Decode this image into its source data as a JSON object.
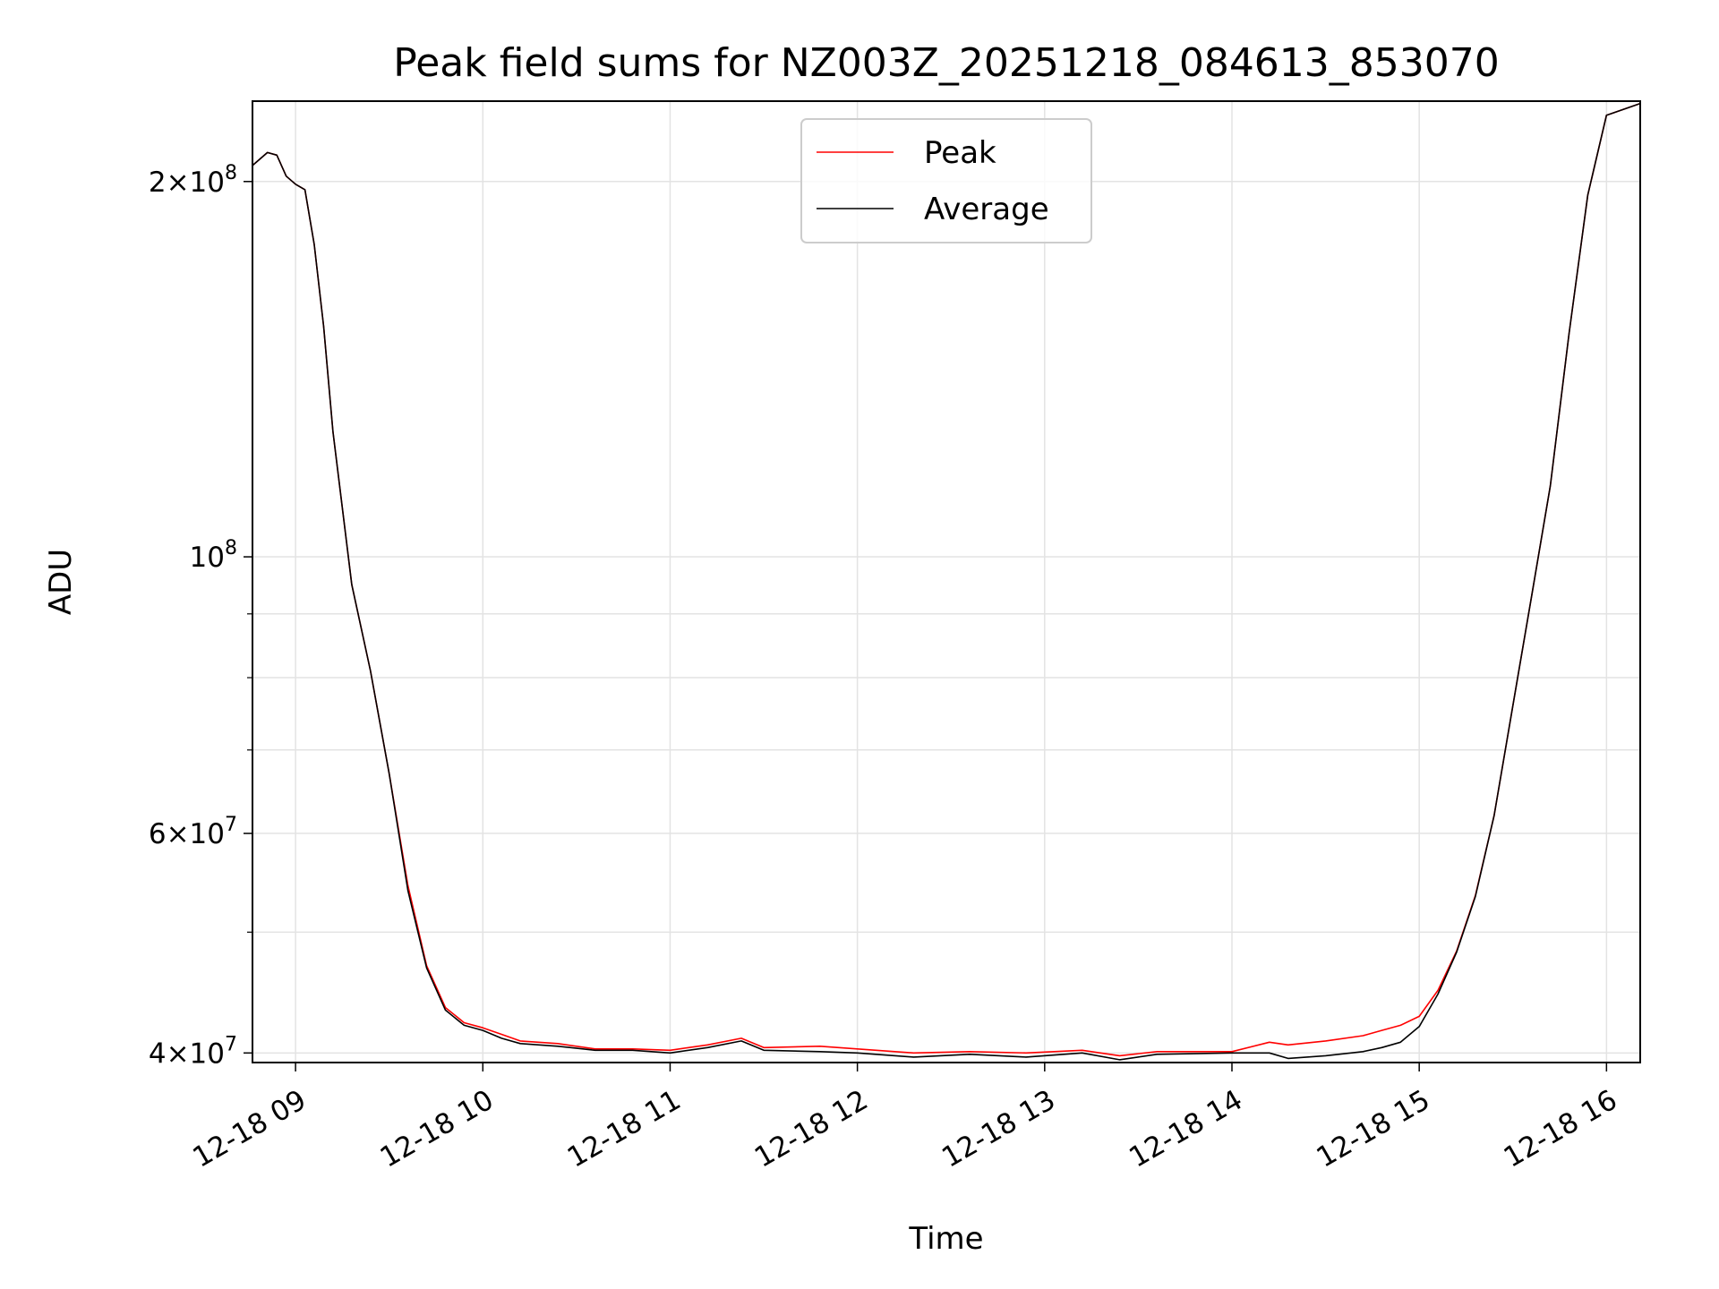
{
  "chart_data": {
    "type": "line",
    "title": "Peak field sums for NZ003Z_20251218_084613_853070",
    "xlabel": "Time",
    "ylabel": "ADU",
    "yscale": "log",
    "xlim": [
      8.77,
      16.18
    ],
    "ylim": [
      39300000,
      232000000
    ],
    "grid": true,
    "legend_position": "top-center",
    "x_ticks": [
      {
        "value": 9,
        "label": "12-18 09"
      },
      {
        "value": 10,
        "label": "12-18 10"
      },
      {
        "value": 11,
        "label": "12-18 11"
      },
      {
        "value": 12,
        "label": "12-18 12"
      },
      {
        "value": 13,
        "label": "12-18 13"
      },
      {
        "value": 14,
        "label": "12-18 14"
      },
      {
        "value": 15,
        "label": "12-18 15"
      },
      {
        "value": 16,
        "label": "12-18 16"
      }
    ],
    "y_major_ticks": [
      {
        "value": 40000000,
        "base": "4",
        "exp": "7"
      },
      {
        "value": 60000000,
        "base": "6",
        "exp": "7"
      },
      {
        "value": 100000000,
        "base": "",
        "exp": "8"
      },
      {
        "value": 200000000,
        "base": "2",
        "exp": "8"
      }
    ],
    "y_minor_ticks": [
      50000000,
      70000000,
      80000000,
      90000000
    ],
    "x_unit": "hour of day (2025-12-18)",
    "series": [
      {
        "name": "Peak",
        "color": "#ff0000",
        "x": [
          8.77,
          8.85,
          8.9,
          8.95,
          9.0,
          9.05,
          9.1,
          9.15,
          9.2,
          9.3,
          9.4,
          9.5,
          9.6,
          9.7,
          9.8,
          9.9,
          10.0,
          10.1,
          10.2,
          10.4,
          10.6,
          10.8,
          11.0,
          11.2,
          11.38,
          11.5,
          11.8,
          12.0,
          12.3,
          12.6,
          12.9,
          13.2,
          13.4,
          13.6,
          14.0,
          14.2,
          14.3,
          14.5,
          14.7,
          14.8,
          14.9,
          15.0,
          15.1,
          15.2,
          15.3,
          15.4,
          15.5,
          15.6,
          15.7,
          15.8,
          15.9,
          16.0,
          16.18
        ],
        "y": [
          206000000,
          211000000,
          210000000,
          202000000,
          199000000,
          197000000,
          178000000,
          153000000,
          126000000,
          95000000,
          81000000,
          67000000,
          54500000,
          47000000,
          43500000,
          42300000,
          41900000,
          41400000,
          40900000,
          40700000,
          40300000,
          40300000,
          40200000,
          40600000,
          41100000,
          40400000,
          40500000,
          40300000,
          40000000,
          40100000,
          40000000,
          40200000,
          39800000,
          40100000,
          40100000,
          40800000,
          40600000,
          40900000,
          41300000,
          41700000,
          42100000,
          42800000,
          44900000,
          48300000,
          53500000,
          62000000,
          76000000,
          93000000,
          114000000,
          151000000,
          195000000,
          226000000,
          231000000
        ]
      },
      {
        "name": "Average",
        "color": "#000000",
        "x": [
          8.77,
          8.85,
          8.9,
          8.95,
          9.0,
          9.05,
          9.1,
          9.15,
          9.2,
          9.3,
          9.4,
          9.5,
          9.6,
          9.7,
          9.8,
          9.9,
          10.0,
          10.1,
          10.2,
          10.4,
          10.6,
          10.8,
          11.0,
          11.2,
          11.38,
          11.5,
          11.8,
          12.0,
          12.3,
          12.6,
          12.9,
          13.2,
          13.4,
          13.6,
          14.0,
          14.2,
          14.3,
          14.5,
          14.7,
          14.8,
          14.9,
          15.0,
          15.1,
          15.2,
          15.3,
          15.4,
          15.5,
          15.6,
          15.7,
          15.8,
          15.9,
          16.0,
          16.18
        ],
        "y": [
          206000000,
          211000000,
          210000000,
          202000000,
          199000000,
          197000000,
          178000000,
          153000000,
          126000000,
          95000000,
          81000000,
          67000000,
          54000000,
          46800000,
          43300000,
          42100000,
          41700000,
          41100000,
          40700000,
          40500000,
          40200000,
          40200000,
          40000000,
          40400000,
          40900000,
          40200000,
          40100000,
          40000000,
          39700000,
          39900000,
          39700000,
          40000000,
          39500000,
          39900000,
          40000000,
          40000000,
          39600000,
          39800000,
          40100000,
          40400000,
          40800000,
          42000000,
          44600000,
          48200000,
          53400000,
          62000000,
          76000000,
          93000000,
          114000000,
          151000000,
          195000000,
          226000000,
          231000000
        ]
      }
    ]
  }
}
